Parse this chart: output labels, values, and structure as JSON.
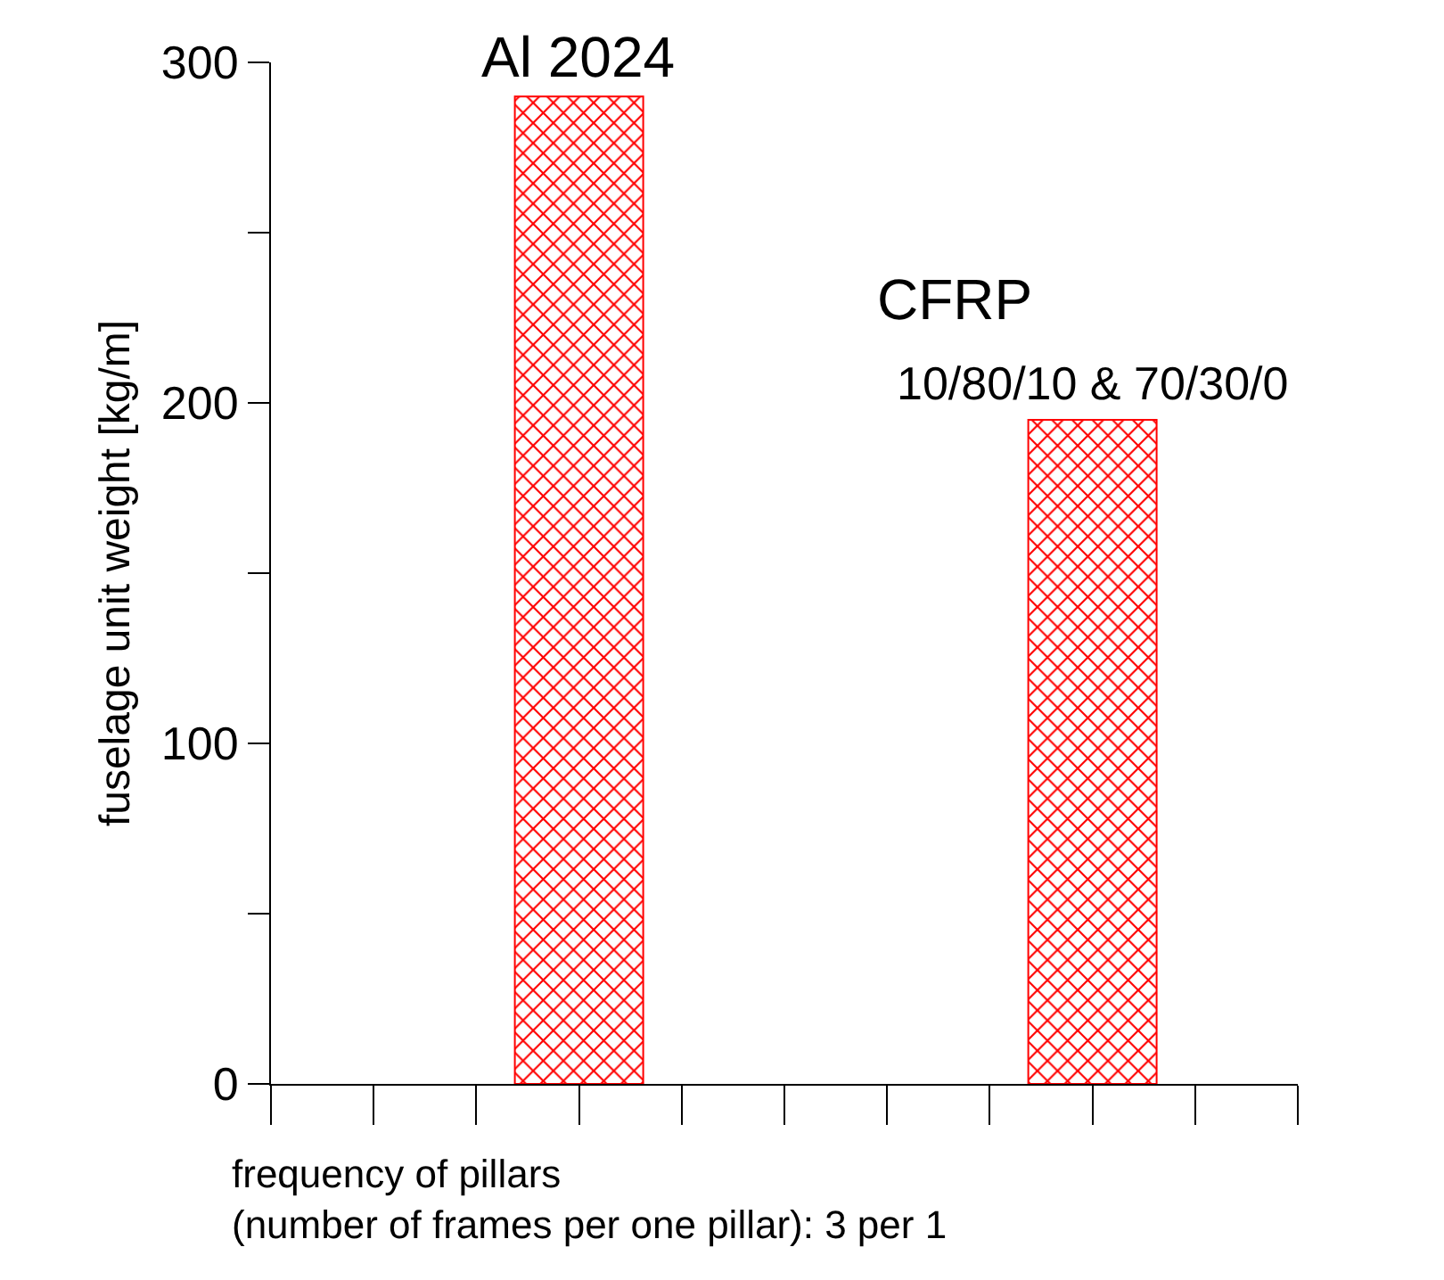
{
  "chart_data": {
    "type": "bar",
    "categories": [
      null,
      null,
      null,
      null,
      null,
      null,
      null,
      null,
      null,
      null,
      null
    ],
    "series": [
      {
        "color": "#ff0000",
        "values": [
          null,
          null,
          null,
          290,
          null,
          null,
          null,
          null,
          195,
          null,
          null
        ]
      }
    ],
    "annotations": [
      "Al 2024",
      "CFRP",
      "10/80/10 & 70/30/0"
    ],
    "xlabel": "frequency of pillars\n(number of frames per one pillar): 3 per 1",
    "ylabel": "fuselage unit weight [kg/m]",
    "ylim": [
      0,
      300
    ],
    "yticks": [
      0,
      {
        "value": 50,
        "label": null
      },
      100,
      {
        "value": 150,
        "label": null
      },
      200,
      {
        "value": 250,
        "label": null
      },
      300
    ],
    "legend": false
  }
}
